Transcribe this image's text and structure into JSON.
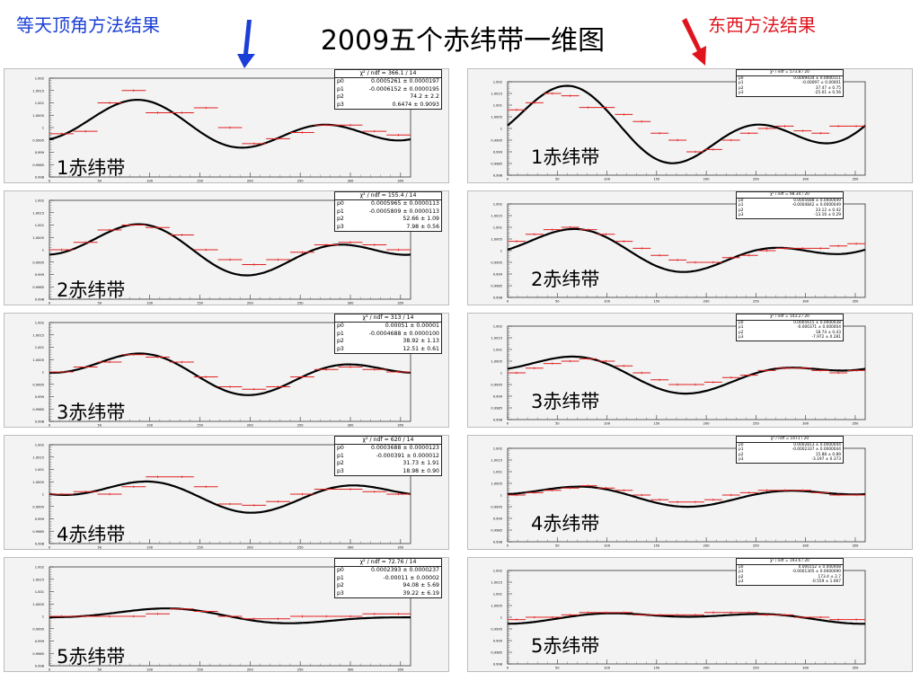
{
  "slide": {
    "title": "2009五个赤纬带一维图",
    "left_label": "等天顶角方法结果",
    "right_label": "东西方法结果"
  },
  "colors": {
    "left_label": "#1a3fd6",
    "right_label": "#e0141e",
    "data_points": "#e02020",
    "fit_curve": "#000000",
    "panel_bg": "#f3f3f3"
  },
  "chart_data": [
    {
      "type": "scatter",
      "method": "等天顶角方法结果",
      "band_label": "1赤纬带",
      "xlim": [
        0,
        360
      ],
      "ylim": [
        0.998,
        1.002
      ],
      "xticks": [
        "0",
        "50",
        "100",
        "150",
        "200",
        "250",
        "300",
        "350"
      ],
      "yticks": [
        "1.002",
        "1.0015",
        "1.001",
        "1.0005",
        "1",
        "0.9995",
        "0.999",
        "0.9985",
        "0.998"
      ],
      "stats": {
        "chi2_label": "χ² / ndf",
        "chi2": "366.1 / 14",
        "params": [
          {
            "name": "p0",
            "value": "0.0005261 ± 0.0000197"
          },
          {
            "name": "p1",
            "value": "-0.0006152 ± 0.0000195"
          },
          {
            "name": "p2",
            "value": "74.2 ± 2.2"
          },
          {
            "name": "p3",
            "value": "0.6474 ± 0.9093"
          }
        ]
      },
      "x": [
        12,
        36,
        60,
        84,
        108,
        132,
        156,
        180,
        204,
        228,
        252,
        276,
        300,
        324,
        348
      ],
      "y": [
        0.99975,
        0.99985,
        1.001,
        1.0015,
        1.0006,
        1.0006,
        1.0008,
        1.0,
        0.99935,
        0.99955,
        0.9998,
        1.0001,
        1.0001,
        0.99985,
        0.9997
      ]
    },
    {
      "type": "scatter",
      "method": "等天顶角方法结果",
      "band_label": "2赤纬带",
      "xlim": [
        0,
        360
      ],
      "ylim": [
        0.998,
        1.002
      ],
      "xticks": [
        "0",
        "50",
        "100",
        "150",
        "200",
        "250",
        "300",
        "350"
      ],
      "yticks": [
        "1.002",
        "1.0015",
        "1.001",
        "1.0005",
        "1",
        "0.9995",
        "0.999",
        "0.9985",
        "0.998"
      ],
      "stats": {
        "chi2_label": "χ² / ndf",
        "chi2": "155.4 / 14",
        "params": [
          {
            "name": "p0",
            "value": "0.0005965 ± 0.0000113"
          },
          {
            "name": "p1",
            "value": "-0.0005809 ± 0.0000113"
          },
          {
            "name": "p2",
            "value": "52.66 ± 1.09"
          },
          {
            "name": "p3",
            "value": "7.98 ± 0.56"
          }
        ]
      },
      "x": [
        12,
        36,
        60,
        84,
        108,
        132,
        156,
        180,
        204,
        228,
        252,
        276,
        300,
        324,
        348
      ],
      "y": [
        1.0,
        1.0003,
        1.0008,
        1.001,
        1.0009,
        1.0006,
        1.0,
        0.9996,
        0.9994,
        0.9996,
        0.9999,
        1.0002,
        1.0003,
        1.0002,
        1.0
      ]
    },
    {
      "type": "scatter",
      "method": "等天顶角方法结果",
      "band_label": "3赤纬带",
      "xlim": [
        0,
        360
      ],
      "ylim": [
        0.998,
        1.002
      ],
      "xticks": [
        "0",
        "50",
        "100",
        "150",
        "200",
        "250",
        "300",
        "350"
      ],
      "yticks": [
        "1.002",
        "1.0015",
        "1.001",
        "1.0005",
        "1",
        "0.9995",
        "0.999",
        "0.9985",
        "0.998"
      ],
      "stats": {
        "chi2_label": "χ² / ndf",
        "chi2": "313 / 14",
        "params": [
          {
            "name": "p0",
            "value": "0.00051 ± 0.00001"
          },
          {
            "name": "p1",
            "value": "-0.0004688 ± 0.0000100"
          },
          {
            "name": "p2",
            "value": "38.92 ± 1.13"
          },
          {
            "name": "p3",
            "value": "12.51 ± 0.61"
          }
        ]
      },
      "x": [
        12,
        36,
        60,
        84,
        108,
        132,
        156,
        180,
        204,
        228,
        252,
        276,
        300,
        324,
        348
      ],
      "y": [
        1.0,
        1.0002,
        1.0004,
        1.0007,
        1.0006,
        1.0004,
        0.9998,
        0.9994,
        0.9993,
        0.9994,
        0.9998,
        1.0001,
        1.0002,
        1.0001,
        1.0
      ]
    },
    {
      "type": "scatter",
      "method": "等天顶角方法结果",
      "band_label": "4赤纬带",
      "xlim": [
        0,
        360
      ],
      "ylim": [
        0.998,
        1.002
      ],
      "xticks": [
        "0",
        "50",
        "100",
        "150",
        "200",
        "250",
        "300",
        "350"
      ],
      "yticks": [
        "1.002",
        "1.0015",
        "1.001",
        "1.0005",
        "1",
        "0.9995",
        "0.999",
        "0.9985",
        "0.998"
      ],
      "stats": {
        "chi2_label": "χ² / ndf",
        "chi2": "620 / 14",
        "params": [
          {
            "name": "p0",
            "value": "0.0003688 ± 0.0000123"
          },
          {
            "name": "p1",
            "value": "-0.000391 ± 0.000012"
          },
          {
            "name": "p2",
            "value": "31.73 ± 1.91"
          },
          {
            "name": "p3",
            "value": "18.98 ± 0.90"
          }
        ]
      },
      "x": [
        12,
        36,
        60,
        84,
        108,
        132,
        156,
        180,
        204,
        228,
        252,
        276,
        300,
        324,
        348
      ],
      "y": [
        1.0,
        1.0001,
        1.0,
        1.0003,
        1.0007,
        1.0007,
        1.0003,
        0.9996,
        0.99955,
        0.9997,
        1.0,
        1.0002,
        1.0002,
        1.0001,
        1.0
      ]
    },
    {
      "type": "scatter",
      "method": "等天顶角方法结果",
      "band_label": "5赤纬带",
      "xlim": [
        0,
        360
      ],
      "ylim": [
        0.998,
        1.002
      ],
      "xticks": [
        "0",
        "50",
        "100",
        "150",
        "200",
        "250",
        "300",
        "350"
      ],
      "yticks": [
        "1.002",
        "1.0015",
        "1.001",
        "1.0005",
        "1",
        "0.9995",
        "0.999",
        "0.9985",
        "0.998"
      ],
      "stats": {
        "chi2_label": "χ² / ndf",
        "chi2": "72.76 / 14",
        "params": [
          {
            "name": "p0",
            "value": "0.0002393 ± 0.0000237"
          },
          {
            "name": "p1",
            "value": "-0.00011 ± 0.00002"
          },
          {
            "name": "p2",
            "value": "94.08 ± 5.69"
          },
          {
            "name": "p3",
            "value": "39.22 ± 6.19"
          }
        ]
      },
      "x": [
        12,
        36,
        60,
        84,
        108,
        132,
        156,
        180,
        204,
        228,
        252,
        276,
        300,
        324,
        348
      ],
      "y": [
        1.0,
        1.0,
        1.0,
        1.0,
        1.0001,
        1.0003,
        1.0002,
        1.0,
        0.9999,
        0.9999,
        1.0,
        1.0,
        1.0,
        1.0001,
        1.0001
      ]
    },
    {
      "type": "scatter",
      "method": "东西方法结果",
      "band_label": "1赤纬带",
      "xlim": [
        0,
        360
      ],
      "ylim": [
        0.998,
        1.002
      ],
      "xticks": [
        "0",
        "50",
        "100",
        "150",
        "200",
        "250",
        "300",
        "350"
      ],
      "yticks": [
        "1.002",
        "1.0015",
        "1.001",
        "1.0005",
        "1",
        "0.9995",
        "0.999",
        "0.9985",
        "0.998"
      ],
      "stats": {
        "chi2_label": "χ² / ndf",
        "chi2": "573.8 / 20",
        "params": [
          {
            "name": "p0",
            "value": "0.0009434 ± 0.0000111"
          },
          {
            "name": "p1",
            "value": "-0.00097 ± 0.00001"
          },
          {
            "name": "p2",
            "value": "37.47 ± 0.75"
          },
          {
            "name": "p3",
            "value": "-25.01 ± 0.56"
          }
        ]
      },
      "x": [
        9,
        27,
        45,
        63,
        81,
        99,
        117,
        135,
        153,
        171,
        189,
        207,
        225,
        243,
        261,
        279,
        297,
        315,
        333,
        351
      ],
      "y": [
        1.0008,
        1.0011,
        1.0015,
        1.0014,
        1.0009,
        1.0009,
        1.0006,
        1.0003,
        0.9998,
        0.9995,
        0.999,
        0.9991,
        0.9995,
        0.9998,
        1.0,
        1.0001,
        0.9999,
        0.9998,
        1.0001,
        1.0001
      ]
    },
    {
      "type": "scatter",
      "method": "东西方法结果",
      "band_label": "2赤纬带",
      "xlim": [
        0,
        360
      ],
      "ylim": [
        0.998,
        1.002
      ],
      "xticks": [
        "0",
        "50",
        "100",
        "150",
        "200",
        "250",
        "300",
        "350"
      ],
      "yticks": [
        "1.002",
        "1.0015",
        "1.001",
        "1.0005",
        "1",
        "0.9995",
        "0.999",
        "0.9985",
        "0.998"
      ],
      "stats": {
        "chi2_label": "χ² / ndf",
        "chi2": "98.34 / 20",
        "params": [
          {
            "name": "p0",
            "value": "0.0005688 ± 0.0000049"
          },
          {
            "name": "p1",
            "value": "-0.0004842 ± 0.0000049"
          },
          {
            "name": "p2",
            "value": "33.12 ± 0.42"
          },
          {
            "name": "p3",
            "value": "-13.16 ± 0.29"
          }
        ]
      },
      "x": [
        9,
        27,
        45,
        63,
        81,
        99,
        117,
        135,
        153,
        171,
        189,
        207,
        225,
        243,
        261,
        279,
        297,
        315,
        333,
        351
      ],
      "y": [
        1.0004,
        1.0007,
        1.0009,
        1.001,
        1.0009,
        1.0007,
        1.0004,
        1.0001,
        0.9998,
        0.9996,
        0.9995,
        0.9995,
        0.9997,
        0.9998,
        1.0,
        1.0001,
        1.0001,
        1.0001,
        1.0002,
        1.0003
      ]
    },
    {
      "type": "scatter",
      "method": "东西方法结果",
      "band_label": "3赤纬带",
      "xlim": [
        0,
        360
      ],
      "ylim": [
        0.998,
        1.002
      ],
      "xticks": [
        "0",
        "50",
        "100",
        "150",
        "200",
        "250",
        "300",
        "350"
      ],
      "yticks": [
        "1.002",
        "1.0015",
        "1.001",
        "1.0005",
        "1",
        "0.9995",
        "0.999",
        "0.9985",
        "0.998"
      ],
      "stats": {
        "chi2_label": "χ² / ndf",
        "chi2": "143.2 / 20",
        "params": [
          {
            "name": "p0",
            "value": "0.0005615 ± 0.0000038"
          },
          {
            "name": "p1",
            "value": "-0.000371 ± 0.000004"
          },
          {
            "name": "p2",
            "value": "18.74 ± 0.43"
          },
          {
            "name": "p3",
            "value": "-7.972 ± 0.281"
          }
        ]
      },
      "x": [
        9,
        27,
        45,
        63,
        81,
        99,
        117,
        135,
        153,
        171,
        189,
        207,
        225,
        243,
        261,
        279,
        297,
        315,
        333,
        351
      ],
      "y": [
        1.0,
        1.0002,
        1.0004,
        1.0005,
        1.0006,
        1.0005,
        1.0003,
        1.0,
        0.9997,
        0.9995,
        0.9995,
        0.9996,
        0.9998,
        0.9999,
        1.0001,
        1.0002,
        1.0002,
        1.0001,
        1.0,
        1.0001
      ]
    },
    {
      "type": "scatter",
      "method": "东西方法结果",
      "band_label": "4赤纬带",
      "xlim": [
        0,
        360
      ],
      "ylim": [
        0.998,
        1.002
      ],
      "xticks": [
        "0",
        "50",
        "100",
        "150",
        "200",
        "250",
        "300",
        "350"
      ],
      "yticks": [
        "1.002",
        "1.0015",
        "1.001",
        "1.0005",
        "1",
        "0.9995",
        "0.999",
        "0.9985",
        "0.998"
      ],
      "stats": {
        "chi2_label": "χ² / ndf",
        "chi2": "1471 / 20",
        "params": [
          {
            "name": "p0",
            "value": "0.0002813 ± 0.0000044"
          },
          {
            "name": "p1",
            "value": "-0.0002337 ± 0.0000044"
          },
          {
            "name": "p2",
            "value": "15.88 ± 0.89"
          },
          {
            "name": "p3",
            "value": "-3.197 ± 0.373"
          }
        ]
      },
      "x": [
        9,
        27,
        45,
        63,
        81,
        99,
        117,
        135,
        153,
        171,
        189,
        207,
        225,
        243,
        261,
        279,
        297,
        315,
        333,
        351
      ],
      "y": [
        1.0,
        1.0001,
        1.0002,
        1.0003,
        1.0004,
        1.0003,
        1.0002,
        1.0,
        0.9998,
        0.9997,
        0.9997,
        0.9998,
        1.0,
        1.0001,
        1.0002,
        1.0002,
        1.0002,
        1.0001,
        1.0,
        1.0
      ]
    },
    {
      "type": "scatter",
      "method": "东西方法结果",
      "band_label": "5赤纬带",
      "xlim": [
        0,
        360
      ],
      "ylim": [
        0.998,
        1.002
      ],
      "xticks": [
        "0",
        "50",
        "100",
        "150",
        "200",
        "250",
        "300",
        "350"
      ],
      "yticks": [
        "1.002",
        "1.0015",
        "1.001",
        "1.0005",
        "1",
        "0.9995",
        "0.999",
        "0.9985",
        "0.998"
      ],
      "stats": {
        "chi2_label": "χ² / ndf",
        "chi2": "193.6 / 20",
        "params": [
          {
            "name": "p0",
            "value": "0.000152 ± 0.000008"
          },
          {
            "name": "p1",
            "value": "-0.0001305 ± 0.0000090"
          },
          {
            "name": "p2",
            "value": "173.4 ± 2.7"
          },
          {
            "name": "p3",
            "value": "-0.559 ± 1.067"
          }
        ]
      },
      "x": [
        9,
        27,
        45,
        63,
        81,
        99,
        117,
        135,
        153,
        171,
        189,
        207,
        225,
        243,
        261,
        279,
        297,
        315,
        333,
        351
      ],
      "y": [
        0.9999,
        1.0,
        1.0,
        1.0001,
        1.0002,
        1.0002,
        1.0002,
        1.0001,
        1.0001,
        1.0001,
        1.0001,
        1.0002,
        1.0002,
        1.0002,
        1.0001,
        1.0001,
        1.0,
        1.0,
        0.9999,
        0.9999
      ]
    }
  ]
}
